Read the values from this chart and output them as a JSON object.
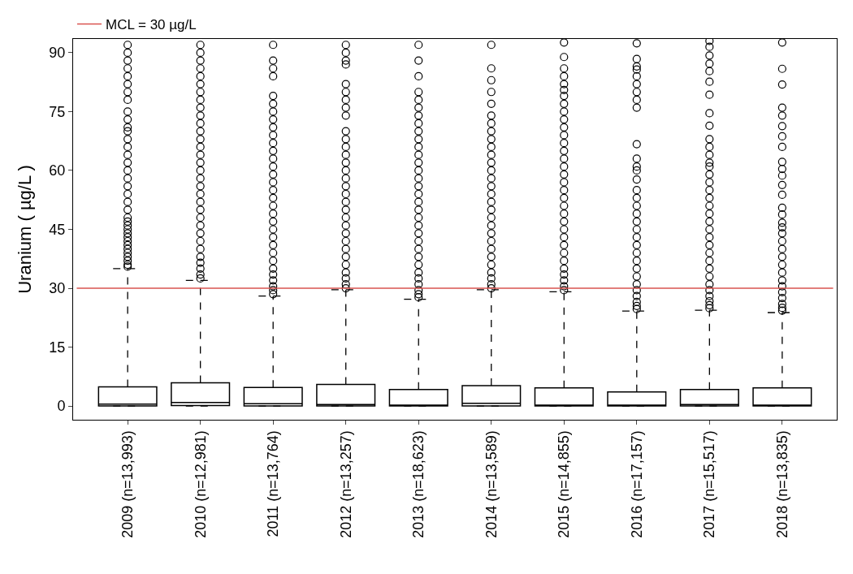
{
  "chart_data": {
    "type": "box",
    "ylabel": "Uranium ( µg/L )",
    "categories": [
      "2009 (n=13,993)",
      "2010 (n=12,981)",
      "2011 (n=13,764)",
      "2012 (n=13,257)",
      "2013 (n=18,623)",
      "2014 (n=13,589)",
      "2015 (n=14,855)",
      "2016 (n=17,157)",
      "2017 (n=15,517)",
      "2018 (n=13,835)"
    ],
    "boxes": [
      {
        "low": 0,
        "q1": 0,
        "median": 0.5,
        "q3": 4.9,
        "high": 35.0,
        "outliers": [
          35.5,
          36,
          37,
          38,
          39,
          40,
          41,
          42,
          43,
          44,
          45,
          46,
          47,
          48,
          50,
          52,
          54,
          56,
          58,
          60,
          62,
          64,
          66,
          68,
          70,
          71,
          73,
          75,
          78,
          80,
          82,
          84,
          86,
          88,
          90,
          92
        ]
      },
      {
        "low": 0,
        "q1": 0.1,
        "median": 0.9,
        "q3": 5.9,
        "high": 32.0,
        "outliers": [
          32.5,
          33.5,
          35,
          36.5,
          38,
          40,
          42,
          44,
          46,
          48,
          50,
          52,
          54,
          56,
          58,
          60,
          62,
          64,
          66,
          68,
          70,
          72,
          74,
          76,
          78,
          80,
          82,
          84,
          86,
          88,
          90,
          92
        ]
      },
      {
        "low": 0,
        "q1": 0,
        "median": 0.6,
        "q3": 4.7,
        "high": 28.0,
        "outliers": [
          28.5,
          29.5,
          30.5,
          32,
          33.5,
          35,
          37,
          39,
          41,
          43,
          45,
          47,
          49,
          51,
          53,
          55,
          57,
          59,
          61,
          63,
          65,
          67,
          69,
          71,
          73,
          75,
          77,
          79,
          84,
          86,
          88,
          92
        ]
      },
      {
        "low": 0,
        "q1": 0,
        "median": 0.4,
        "q3": 5.5,
        "high": 29.6,
        "outliers": [
          30,
          31,
          32.5,
          34,
          36,
          38,
          40,
          42,
          44,
          46,
          48,
          50,
          52,
          54,
          56,
          58,
          60,
          62,
          64,
          66,
          68,
          70,
          74,
          76,
          78,
          80,
          82,
          87,
          88,
          90,
          92
        ]
      },
      {
        "low": 0,
        "q1": 0,
        "median": 0.2,
        "q3": 4.2,
        "high": 27.2,
        "outliers": [
          27.7,
          28.5,
          29.5,
          31,
          32.5,
          34,
          36,
          38,
          40,
          42,
          44,
          46,
          48,
          50,
          52,
          54,
          56,
          58,
          60,
          62,
          64,
          66,
          68,
          70,
          72,
          74,
          76,
          78,
          80,
          84,
          88,
          92
        ]
      },
      {
        "low": 0,
        "q1": 0,
        "median": 0.7,
        "q3": 5.2,
        "high": 29.6,
        "outliers": [
          30,
          31,
          32.5,
          34,
          36,
          38,
          40,
          42,
          44,
          46,
          48,
          50,
          52,
          54,
          56,
          58,
          60,
          62,
          64,
          66,
          68,
          70,
          72,
          74,
          77,
          80,
          83,
          86,
          92
        ]
      },
      {
        "low": 0,
        "q1": 0,
        "median": 0.2,
        "q3": 4.6,
        "high": 29.1,
        "outliers": [
          29.5,
          30.5,
          32,
          33.5,
          35,
          37,
          39,
          41,
          43,
          45,
          47,
          49,
          51,
          53,
          55,
          57,
          59,
          61,
          63,
          65,
          67,
          69,
          71,
          73,
          75,
          77,
          79,
          80.5,
          82,
          84,
          86,
          88.9,
          92.6
        ]
      },
      {
        "low": 0,
        "q1": 0,
        "median": 0.2,
        "q3": 3.6,
        "high": 24.2,
        "outliers": [
          24.7,
          25.5,
          26.5,
          28,
          29.5,
          31,
          33,
          35,
          37,
          39,
          41,
          43,
          45,
          47,
          49,
          51,
          53,
          55,
          57.7,
          60,
          61,
          63,
          66.7,
          76,
          78,
          80,
          82,
          84,
          85.7,
          86.5,
          88.4,
          92.4
        ]
      },
      {
        "low": 0,
        "q1": 0,
        "median": 0.4,
        "q3": 4.2,
        "high": 24.4,
        "outliers": [
          24.9,
          25.7,
          26.7,
          28,
          29.5,
          31,
          33,
          35,
          37,
          39,
          41,
          43,
          45,
          47,
          49,
          51,
          53,
          55,
          57,
          59,
          61,
          62,
          64,
          66,
          68,
          71.4,
          74.6,
          79.3,
          82.6,
          85.3,
          87.2,
          89.3,
          91.5,
          93
        ]
      },
      {
        "low": 0,
        "q1": 0,
        "median": 0.2,
        "q3": 4.6,
        "high": 23.8,
        "outliers": [
          24.3,
          25,
          26,
          27.5,
          29,
          30.5,
          32,
          34,
          36,
          38,
          40,
          42,
          44,
          45.5,
          46.7,
          48.8,
          50.5,
          53.8,
          56.3,
          58.7,
          60.4,
          62.2,
          66,
          68.7,
          71.3,
          74,
          76,
          81.9,
          85.9,
          92.6
        ]
      }
    ],
    "ylim": [
      -3.5,
      93.5
    ],
    "yticks": [
      0,
      15,
      30,
      45,
      60,
      75,
      90
    ],
    "marker": "circle",
    "legend": "top left",
    "ref_lines": [
      {
        "axis": "y",
        "value": 30,
        "label": "MCL = 30 µg/L",
        "color": "#d9534f"
      }
    ]
  }
}
